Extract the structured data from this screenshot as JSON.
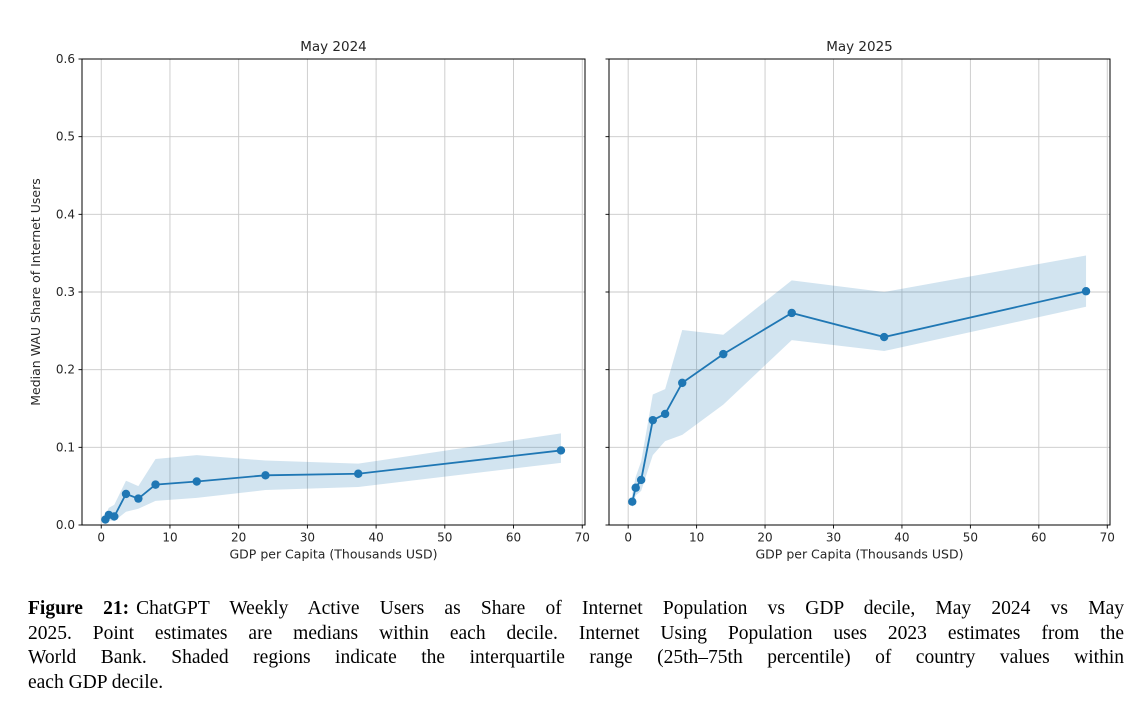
{
  "caption": {
    "label": "Figure 21:",
    "lines": [
      "ChatGPT Weekly Active Users as Share of Internet Population vs GDP decile, May 2024 vs May",
      "2025. Point estimates are medians within each decile. Internet Using Population uses 2023 estimates from the",
      "World Bank. Shaded regions indicate the interquartile range (25th–75th percentile) of country values within",
      "each GDP decile."
    ]
  },
  "chart_data": [
    {
      "type": "line",
      "title": "May 2024",
      "xlabel": "GDP per Capita (Thousands USD)",
      "ylabel": "Median WAU Share of Internet Users",
      "x": [
        0.6,
        1.1,
        1.9,
        3.6,
        5.4,
        7.9,
        13.9,
        23.9,
        37.4,
        66.9
      ],
      "median": [
        0.007,
        0.013,
        0.011,
        0.04,
        0.034,
        0.052,
        0.056,
        0.064,
        0.066,
        0.096
      ],
      "iqr_lower": [
        0.003,
        0.006,
        0.005,
        0.017,
        0.021,
        0.031,
        0.035,
        0.045,
        0.049,
        0.08
      ],
      "iqr_upper": [
        0.013,
        0.022,
        0.026,
        0.057,
        0.05,
        0.085,
        0.09,
        0.083,
        0.079,
        0.118
      ],
      "xlim": [
        -2.8,
        70.4
      ],
      "ylim": [
        0,
        0.6
      ],
      "xticks": [
        0,
        10,
        20,
        30,
        40,
        50,
        60,
        70
      ],
      "yticks": [
        0.0,
        0.1,
        0.2,
        0.3,
        0.4,
        0.5,
        0.6
      ],
      "grid": true,
      "show_ytick_labels": true,
      "line_color": "#1f77b4",
      "band_color": "#1f77b4",
      "band_opacity": 0.2
    },
    {
      "type": "line",
      "title": "May 2025",
      "xlabel": "GDP per Capita (Thousands USD)",
      "ylabel": "",
      "x": [
        0.6,
        1.1,
        1.9,
        3.6,
        5.4,
        7.9,
        13.9,
        23.9,
        37.4,
        66.9
      ],
      "median": [
        0.03,
        0.048,
        0.058,
        0.135,
        0.143,
        0.183,
        0.22,
        0.273,
        0.242,
        0.301
      ],
      "iqr_lower": [
        0.022,
        0.038,
        0.044,
        0.09,
        0.108,
        0.116,
        0.155,
        0.238,
        0.224,
        0.281
      ],
      "iqr_upper": [
        0.04,
        0.062,
        0.082,
        0.168,
        0.175,
        0.251,
        0.245,
        0.315,
        0.3,
        0.347
      ],
      "xlim": [
        -2.8,
        70.4
      ],
      "ylim": [
        0,
        0.6
      ],
      "xticks": [
        0,
        10,
        20,
        30,
        40,
        50,
        60,
        70
      ],
      "yticks": [
        0.0,
        0.1,
        0.2,
        0.3,
        0.4,
        0.5,
        0.6
      ],
      "grid": true,
      "show_ytick_labels": false,
      "line_color": "#1f77b4",
      "band_color": "#1f77b4",
      "band_opacity": 0.2
    }
  ]
}
